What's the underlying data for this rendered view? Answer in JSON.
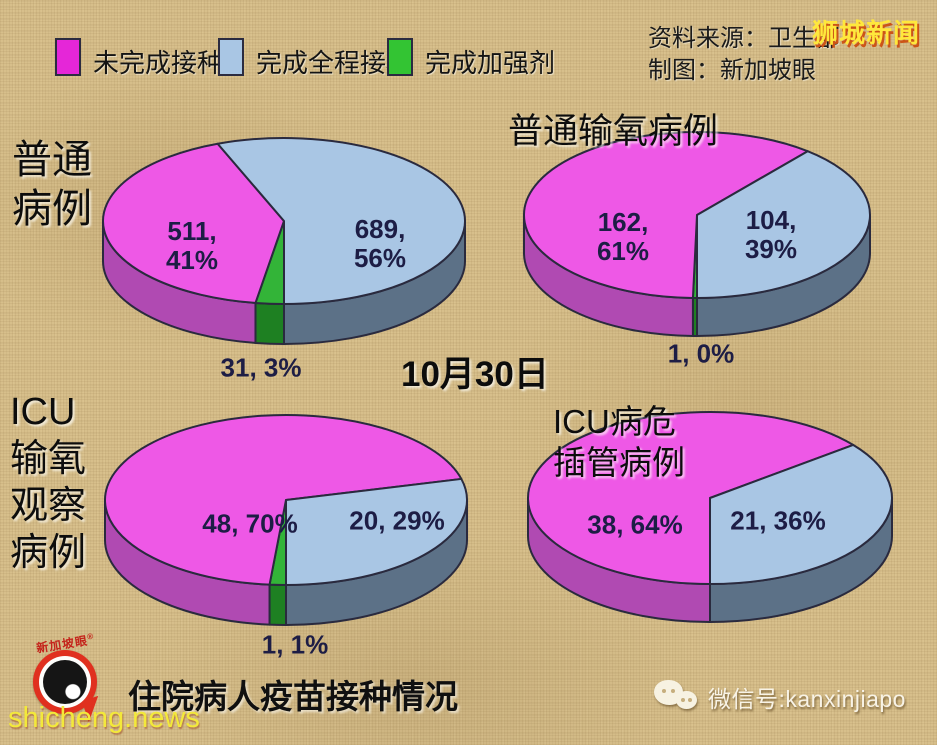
{
  "meta": {
    "watermark_top": "狮城新闻",
    "source_line1": "资料来源：卫生部",
    "source_line2": "制图：新加坡眼",
    "date": "10月30日",
    "footer_title": "住院病人疫苗接种情况",
    "watermark_bottom": "shicheng.news",
    "wechat": "微信号:kanxinjiapo",
    "logo_text": "新加坡眼",
    "logo_reg": "®"
  },
  "legend": {
    "items": [
      {
        "label": "未完成接种",
        "color": "#e526d8",
        "pie_color": "#ee58e6",
        "side_color": "#b04ab2"
      },
      {
        "label": "完成全程接种",
        "color": "#a9c6e4",
        "pie_color": "#a9c6e4",
        "side_color": "#5c7187"
      },
      {
        "label": "完成加强剂",
        "color": "#33c433",
        "pie_color": "#33b438",
        "side_color": "#1e8022"
      }
    ]
  },
  "chart_data": [
    {
      "type": "pie",
      "title": "普通\n病例",
      "slices": [
        {
          "category": "未完成接种",
          "value": 511,
          "pct": "41%",
          "label": "511,\n41%"
        },
        {
          "category": "完成全程接种",
          "value": 689,
          "pct": "56%",
          "label": "689,\n56%"
        },
        {
          "category": "完成加强剂",
          "value": 31,
          "pct": "3%",
          "label": "31, 3%"
        }
      ]
    },
    {
      "type": "pie",
      "title": "普通输氧病例",
      "slices": [
        {
          "category": "未完成接种",
          "value": 162,
          "pct": "61%",
          "label": "162,\n61%"
        },
        {
          "category": "完成全程接种",
          "value": 104,
          "pct": "39%",
          "label": "104,\n39%"
        },
        {
          "category": "完成加强剂",
          "value": 1,
          "pct": "0%",
          "label": "1, 0%"
        }
      ]
    },
    {
      "type": "pie",
      "title": "ICU\n输氧\n观察\n病例",
      "slices": [
        {
          "category": "未完成接种",
          "value": 48,
          "pct": "70%",
          "label": "48, 70%"
        },
        {
          "category": "完成全程接种",
          "value": 20,
          "pct": "29%",
          "label": "20, 29%"
        },
        {
          "category": "完成加强剂",
          "value": 1,
          "pct": "1%",
          "label": "1, 1%"
        }
      ]
    },
    {
      "type": "pie",
      "title": "ICU病危\n插管病例",
      "slices": [
        {
          "category": "未完成接种",
          "value": 38,
          "pct": "64%",
          "label": "38, 64%"
        },
        {
          "category": "完成全程接种",
          "value": 21,
          "pct": "36%",
          "label": "21, 36%"
        }
      ]
    }
  ]
}
